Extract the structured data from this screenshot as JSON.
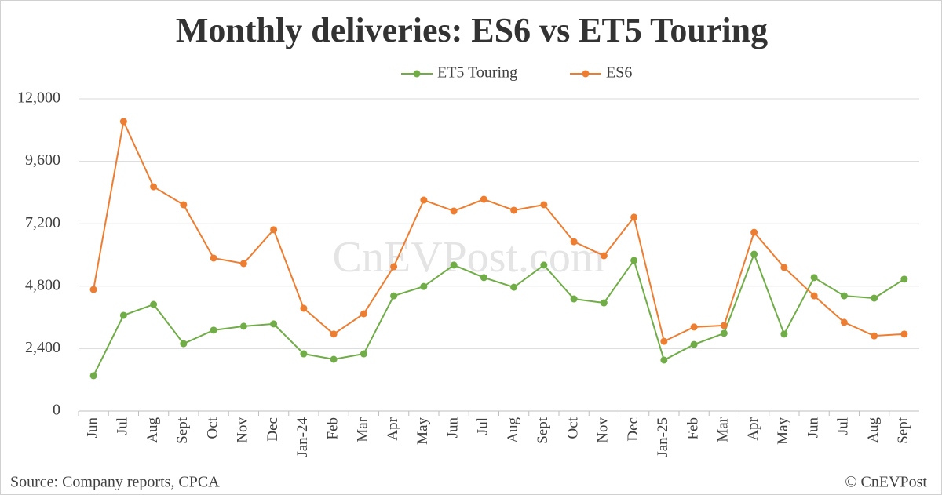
{
  "chart_data": {
    "type": "line",
    "title": "Monthly deliveries: ES6 vs ET5 Touring",
    "watermark": "CnEVPost.com",
    "source": "Source: Company reports, CPCA",
    "credit": "© CnEVPost",
    "categories": [
      "Jun",
      "Jul",
      "Aug",
      "Sept",
      "Oct",
      "Nov",
      "Dec",
      "Jan-24",
      "Feb",
      "Mar",
      "Apr",
      "May",
      "Jun",
      "Jul",
      "Aug",
      "Sept",
      "Oct",
      "Nov",
      "Dec",
      "Jan-25",
      "Feb",
      "Mar",
      "Apr",
      "May",
      "Jun",
      "Jul",
      "Aug",
      "Sept"
    ],
    "series": [
      {
        "name": "ET5 Touring",
        "color": "#70ad47",
        "values": [
          1360,
          3680,
          4100,
          2590,
          3110,
          3260,
          3350,
          2200,
          1990,
          2200,
          4430,
          4790,
          5610,
          5130,
          4760,
          5610,
          4310,
          4160,
          5790,
          1960,
          2560,
          2990,
          6030,
          2960,
          5130,
          4430,
          4340,
          5070
        ]
      },
      {
        "name": "ES6",
        "color": "#ed7d31",
        "values": [
          4670,
          11130,
          8620,
          7930,
          5880,
          5670,
          6970,
          3950,
          2960,
          3740,
          5550,
          8110,
          7690,
          8140,
          7720,
          7930,
          6510,
          5970,
          7450,
          2680,
          3230,
          3290,
          6870,
          5520,
          4430,
          3410,
          2890,
          2960
        ]
      }
    ],
    "ylim": [
      0,
      12000
    ],
    "yticks": [
      0,
      {
        "value": 2400,
        "label": "2,400"
      },
      {
        "value": 4800,
        "label": "4,800"
      },
      {
        "value": 7200,
        "label": "7,200"
      },
      {
        "value": 9600,
        "label": "9,600"
      },
      {
        "value": 12000,
        "label": "12,000"
      }
    ],
    "grid": true,
    "legend": "top"
  }
}
